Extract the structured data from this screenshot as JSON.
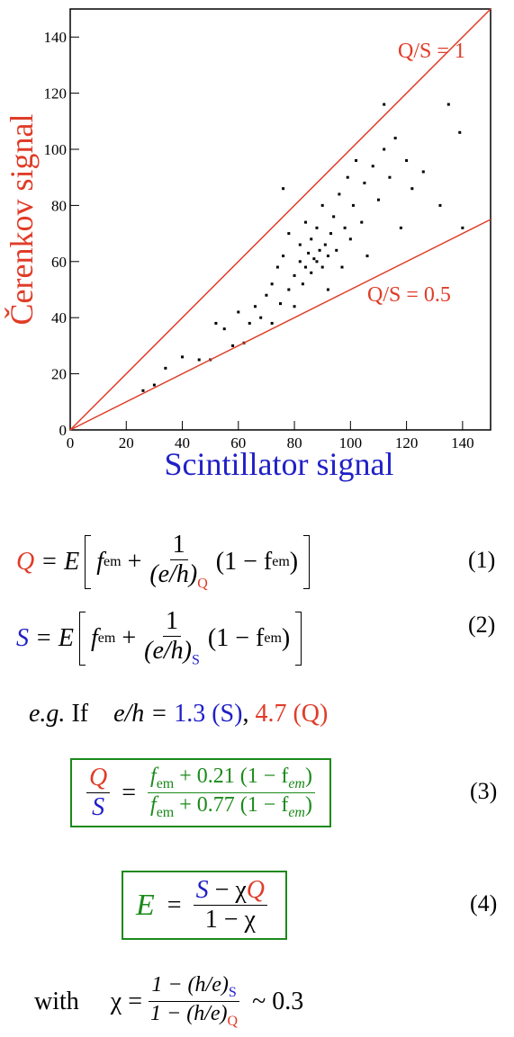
{
  "chart_data": {
    "type": "scatter",
    "xlabel": "Scintillator signal",
    "ylabel": "Čerenkov signal",
    "xlim": [
      0,
      150
    ],
    "ylim": [
      0,
      150
    ],
    "xticks": [
      0,
      20,
      40,
      60,
      80,
      100,
      120,
      140
    ],
    "yticks": [
      0,
      20,
      40,
      60,
      80,
      100,
      120,
      140
    ],
    "color": "#000000",
    "x": [
      26,
      30,
      34,
      40,
      46,
      50,
      52,
      55,
      58,
      60,
      62,
      64,
      66,
      68,
      70,
      72,
      72,
      74,
      75,
      76,
      78,
      78,
      80,
      80,
      82,
      82,
      83,
      84,
      84,
      85,
      86,
      86,
      87,
      88,
      88,
      89,
      90,
      90,
      91,
      92,
      92,
      93,
      94,
      95,
      96,
      97,
      98,
      99,
      100,
      101,
      102,
      104,
      105,
      106,
      108,
      110,
      112,
      114,
      116,
      118,
      120,
      122,
      126,
      132,
      135,
      139,
      140,
      112,
      76
    ],
    "values": [
      14,
      16,
      22,
      26,
      25,
      25,
      38,
      36,
      30,
      42,
      31,
      38,
      44,
      40,
      48,
      52,
      38,
      58,
      45,
      62,
      50,
      70,
      55,
      44,
      60,
      66,
      52,
      58,
      74,
      63,
      56,
      68,
      61,
      60,
      72,
      64,
      58,
      80,
      66,
      62,
      50,
      70,
      76,
      64,
      84,
      58,
      72,
      90,
      68,
      80,
      96,
      74,
      88,
      62,
      94,
      82,
      100,
      90,
      104,
      72,
      96,
      86,
      92,
      80,
      116,
      106,
      72,
      116,
      86
    ],
    "lines": [
      {
        "label": "Q/S = 1",
        "slope": 1,
        "color": "#e03c28"
      },
      {
        "label": "Q/S = 0.5",
        "slope": 0.5,
        "color": "#e03c28"
      }
    ]
  },
  "equation_1": {
    "lhs": "Q",
    "eq": "= E",
    "f": "f",
    "f_sub": "em",
    "plus": "+",
    "num": "1",
    "den": "(e/h)",
    "den_sub": "Q",
    "factor": "(1 − f",
    "factor_sub": "em",
    "close": ")",
    "number": "(1)"
  },
  "equation_2": {
    "lhs": "S",
    "eq": "= E",
    "f": "f",
    "f_sub": "em",
    "plus": "+",
    "num": "1",
    "den": "(e/h)",
    "den_sub": "S",
    "factor": "(1 − f",
    "factor_sub": "em",
    "close": ")",
    "number": "(2)"
  },
  "example": {
    "prefix": "e.g.",
    "if": "If",
    "ratio": "e/h =",
    "s_value": "1.3 (S)",
    "comma": ",",
    "q_value": "4.7 (Q)"
  },
  "equation_3": {
    "lhs_num": "Q",
    "lhs_den": "S",
    "eq": "=",
    "num_f": "f",
    "num_f_sub": "em",
    "num_rest": "+ 0.21 (1 − f",
    "num_rest_sub": "em",
    "num_close": ")",
    "den_f": "f",
    "den_f_sub": "em",
    "den_rest": "+ 0.77 (1 − f",
    "den_rest_sub": "em",
    "den_close": ")",
    "number": "(3)"
  },
  "equation_4": {
    "lhs": "E",
    "eq": "=",
    "num_s": "S",
    "num_mid": "− χ",
    "num_q": "Q",
    "den": "1 − χ",
    "number": "(4)"
  },
  "definition": {
    "with": "with",
    "chi": "χ",
    "eq": "=",
    "num": "1 − (h/e)",
    "num_sub": "S",
    "den": "1 − (h/e)",
    "den_sub": "Q",
    "approx": "~ 0.3"
  }
}
